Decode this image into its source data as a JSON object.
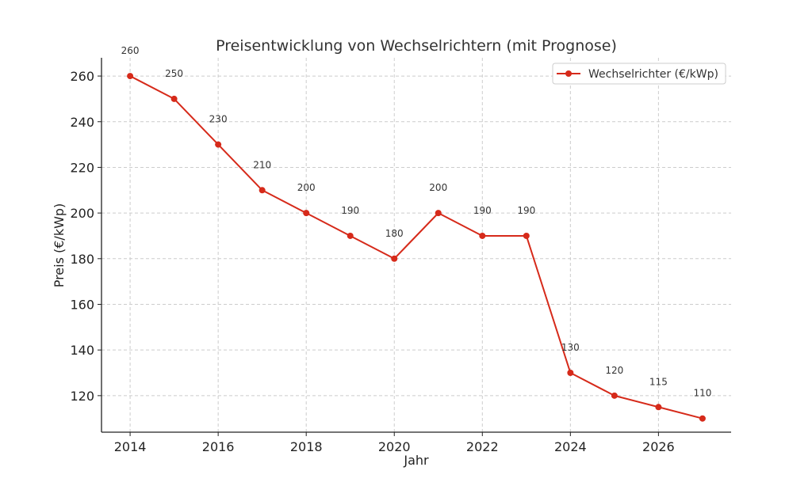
{
  "chart_data": {
    "type": "line",
    "title": "Preisentwicklung von Wechselrichtern (mit Prognose)",
    "xlabel": "Jahr",
    "ylabel": "Preis (€/kWp)",
    "xlim": [
      2013.35,
      2027.65
    ],
    "ylim": [
      104,
      268
    ],
    "x_ticks": [
      2014,
      2016,
      2018,
      2020,
      2022,
      2024,
      2026
    ],
    "y_ticks": [
      120,
      140,
      160,
      180,
      200,
      220,
      240,
      260
    ],
    "grid": true,
    "legend_position": "top-right",
    "series": [
      {
        "name": "Wechselrichter (€/kWp)",
        "color": "#d62a1a",
        "x": [
          2014,
          2015,
          2016,
          2017,
          2018,
          2019,
          2020,
          2021,
          2022,
          2023,
          2024,
          2025,
          2026,
          2027
        ],
        "values": [
          260,
          250,
          230,
          210,
          200,
          190,
          180,
          200,
          190,
          190,
          130,
          120,
          115,
          110
        ],
        "labels": [
          "260",
          "250",
          "230",
          "210",
          "200",
          "190",
          "180",
          "200",
          "190",
          "190",
          "130",
          "120",
          "115",
          "110"
        ]
      }
    ]
  }
}
